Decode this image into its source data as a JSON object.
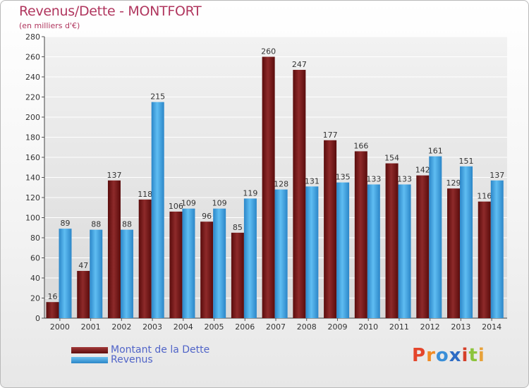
{
  "title": "Revenus/Dette - MONTFORT",
  "subtitle": "(en milliers d'€)",
  "logo": {
    "letters": [
      "P",
      "r",
      "o",
      "x",
      "i",
      "t",
      "i"
    ],
    "colors": [
      "#e4452b",
      "#f08a24",
      "#3a8fd8",
      "#2e6bc4",
      "#d6402a",
      "#8cc43c",
      "#e8a23a"
    ]
  },
  "colors": {
    "debt": "#7a1c1c",
    "revenue": "#3da3e6",
    "title": "#b0365e",
    "grid": "#ffffff"
  },
  "chart_data": {
    "type": "bar",
    "title": "Revenus/Dette - MONTFORT",
    "ylabel": "(en milliers d'€)",
    "categories": [
      "2000",
      "2001",
      "2002",
      "2003",
      "2004",
      "2005",
      "2006",
      "2007",
      "2008",
      "2009",
      "2010",
      "2011",
      "2012",
      "2013",
      "2014"
    ],
    "series": [
      {
        "name": "Montant de la Dette",
        "values": [
          16,
          47,
          137,
          118,
          106,
          96,
          85,
          260,
          247,
          177,
          166,
          154,
          142,
          129,
          116
        ]
      },
      {
        "name": "Revenus",
        "values": [
          89,
          88,
          88,
          215,
          109,
          109,
          119,
          128,
          131,
          135,
          133,
          133,
          161,
          151,
          137
        ]
      }
    ],
    "ylim": [
      0,
      280
    ],
    "yticks": [
      "0",
      "20",
      "40",
      "60",
      "80",
      "100",
      "120",
      "140",
      "160",
      "180",
      "200",
      "220",
      "240",
      "260",
      "280"
    ],
    "grid": true,
    "legend": "bottom-left"
  }
}
